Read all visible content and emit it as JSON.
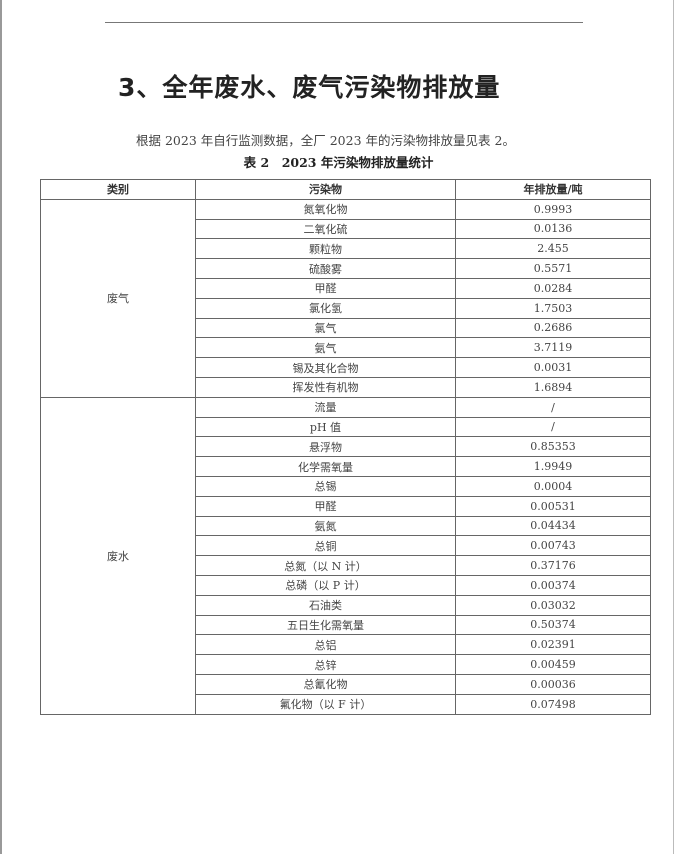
{
  "heading": "3、全年废水、废气污染物排放量",
  "paragraph": "根据 2023 年自行监测数据，全厂 2023 年的污染物排放量见表 2。",
  "caption": "表 2　2023 年污染物排放量统计",
  "table": {
    "headers": [
      "类别",
      "污染物",
      "年排放量/吨"
    ],
    "groups": [
      {
        "category": "废气",
        "rows": [
          [
            "氮氧化物",
            "0.9993"
          ],
          [
            "二氧化硫",
            "0.0136"
          ],
          [
            "颗粒物",
            "2.455"
          ],
          [
            "硫酸雾",
            "0.5571"
          ],
          [
            "甲醛",
            "0.0284"
          ],
          [
            "氯化氢",
            "1.7503"
          ],
          [
            "氯气",
            "0.2686"
          ],
          [
            "氨气",
            "3.7119"
          ],
          [
            "锡及其化合物",
            "0.0031"
          ],
          [
            "挥发性有机物",
            "1.6894"
          ]
        ]
      },
      {
        "category": "废水",
        "rows": [
          [
            "流量",
            "/"
          ],
          [
            "pH 值",
            "/"
          ],
          [
            "悬浮物",
            "0.85353"
          ],
          [
            "化学需氧量",
            "1.9949"
          ],
          [
            "总锡",
            "0.0004"
          ],
          [
            "甲醛",
            "0.00531"
          ],
          [
            "氨氮",
            "0.04434"
          ],
          [
            "总铜",
            "0.00743"
          ],
          [
            "总氮（以 N 计）",
            "0.37176"
          ],
          [
            "总磷（以 P 计）",
            "0.00374"
          ],
          [
            "石油类",
            "0.03032"
          ],
          [
            "五日生化需氧量",
            "0.50374"
          ],
          [
            "总铝",
            "0.02391"
          ],
          [
            "总锌",
            "0.00459"
          ],
          [
            "总氰化物",
            "0.00036"
          ],
          [
            "氟化物（以 F 计）",
            "0.07498"
          ]
        ]
      }
    ]
  }
}
